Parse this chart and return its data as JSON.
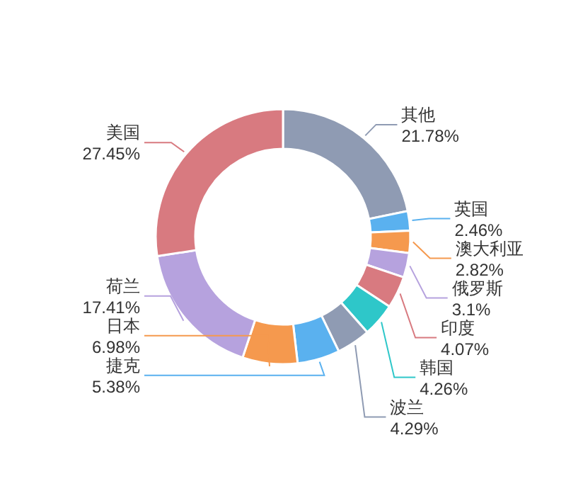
{
  "chart_data": {
    "type": "donut",
    "categories": [
      "其他",
      "英国",
      "澳大利亚",
      "俄罗斯",
      "印度",
      "韩国",
      "波兰",
      "捷克",
      "日本",
      "荷兰",
      "美国"
    ],
    "values": [
      21.78,
      2.46,
      2.82,
      3.1,
      4.07,
      4.26,
      4.29,
      5.38,
      6.98,
      17.41,
      27.45
    ],
    "value_labels": [
      "21.78%",
      "2.46%",
      "2.82%",
      "3.1%",
      "4.07%",
      "4.26%",
      "4.29%",
      "5.38%",
      "6.98%",
      "17.41%",
      "27.45%"
    ],
    "colors": [
      "#8f9bb3",
      "#5ab1ef",
      "#f5994e",
      "#b6a2de",
      "#d87a80",
      "#2ec7c9",
      "#8f9bb3",
      "#5ab1ef",
      "#f5994e",
      "#b6a2de",
      "#d87a80"
    ]
  }
}
